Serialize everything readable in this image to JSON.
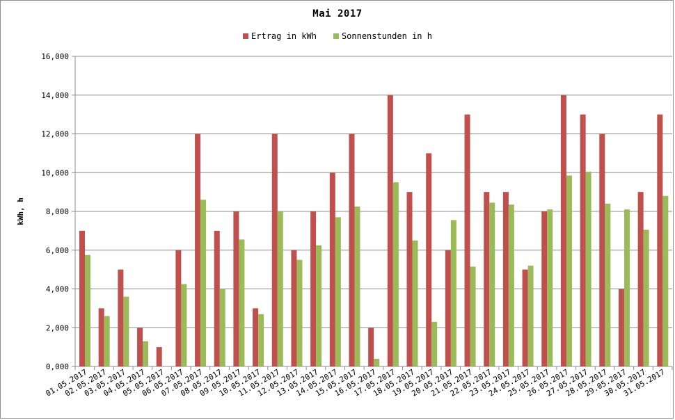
{
  "chart_data": {
    "type": "bar",
    "title": "Mai 2017",
    "xlabel": "",
    "ylabel": "kWh, h",
    "ylim": [
      0,
      16
    ],
    "yticks": [
      "0,000",
      "2,000",
      "4,000",
      "6,000",
      "8,000",
      "10,000",
      "12,000",
      "14,000",
      "16,000"
    ],
    "legend_position": "top-center",
    "grid": "horizontal",
    "categories": [
      "01.05.2017",
      "02.05.2017",
      "03.05.2017",
      "04.05.2017",
      "05.05.2017",
      "06.05.2017",
      "07.05.2017",
      "08.05.2017",
      "09.05.2017",
      "10.05.2017",
      "11.05.2017",
      "12.05.2017",
      "13.05.2017",
      "14.05.2017",
      "15.05.2017",
      "16.05.2017",
      "17.05.2017",
      "18.05.2017",
      "19.05.2017",
      "20.05.2017",
      "21.05.2017",
      "22.05.2017",
      "23.05.2017",
      "24.05.2017",
      "25.05.2017",
      "26.05.2017",
      "27.05.2017",
      "28.05.2017",
      "29.05.2017",
      "30.05.2017",
      "31.05.2017"
    ],
    "series": [
      {
        "name": "Ertrag in kWh",
        "color": "#c0504d",
        "values": [
          7,
          3,
          5,
          2,
          1,
          6,
          12,
          7,
          8,
          3,
          12,
          6,
          8,
          10,
          12,
          2,
          14,
          9,
          11,
          6,
          13,
          9,
          9,
          5,
          8,
          14,
          13,
          12,
          4,
          9,
          13
        ]
      },
      {
        "name": "Sonnenstunden in h",
        "color": "#9bbb59",
        "values": [
          5.75,
          2.6,
          3.6,
          1.3,
          0,
          4.25,
          8.6,
          4.0,
          6.55,
          2.7,
          8.0,
          5.5,
          6.25,
          7.7,
          8.25,
          0.4,
          9.5,
          6.5,
          2.3,
          7.55,
          5.15,
          8.45,
          8.35,
          5.2,
          8.1,
          9.85,
          10.05,
          8.4,
          8.1,
          7.05,
          8.8
        ]
      }
    ]
  }
}
